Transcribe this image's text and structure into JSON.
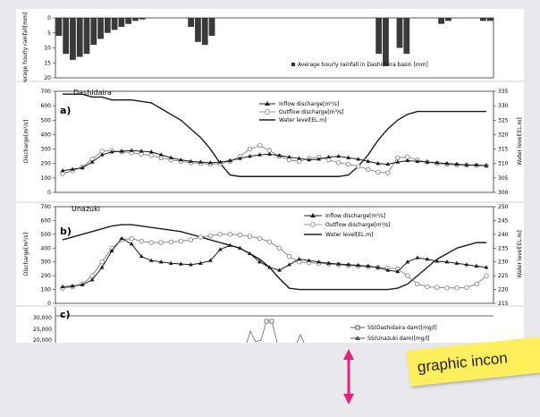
{
  "chart_data": [
    {
      "type": "bar",
      "panel": "top",
      "ylabel": "Average hourly rainfall[mm]",
      "legend": "Average hourly rainfall in Dashidaira basin [mm]",
      "ylim": [
        0,
        20
      ],
      "inverted": true,
      "yticks": [
        "0",
        "5",
        "10",
        "15",
        "20"
      ],
      "values": [
        6,
        12,
        14,
        13,
        12,
        9,
        7,
        5,
        4,
        3,
        2,
        1,
        0.5,
        0,
        0,
        0,
        0,
        0,
        0,
        3,
        8,
        9,
        6,
        0,
        0,
        0,
        0,
        0,
        0,
        0,
        0,
        0,
        0,
        0,
        0,
        0,
        0,
        0,
        0,
        0,
        0,
        0,
        0,
        0,
        0,
        0,
        12,
        16,
        0,
        10,
        12,
        0,
        0,
        0,
        0,
        2,
        1,
        0,
        0,
        0,
        0,
        1,
        1
      ]
    },
    {
      "type": "line",
      "panel": "a)",
      "title": "Dashidaira",
      "ylabel": "Discharge[m³/s]",
      "y2label": "Water level[EL.m]",
      "ylim": [
        0,
        700
      ],
      "y2lim": [
        300,
        335
      ],
      "yticks": [
        "0",
        "100",
        "200",
        "300",
        "400",
        "500",
        "600",
        "700"
      ],
      "y2ticks": [
        "300",
        "305",
        "310",
        "315",
        "320",
        "325",
        "330",
        "335"
      ],
      "series": [
        {
          "name": "Inflow discharge[m³/s]",
          "values": [
            150,
            160,
            170,
            210,
            260,
            280,
            285,
            290,
            285,
            280,
            260,
            240,
            225,
            215,
            210,
            205,
            210,
            220,
            235,
            250,
            260,
            265,
            255,
            245,
            235,
            225,
            230,
            245,
            250,
            240,
            230,
            215,
            200,
            195,
            210,
            220,
            215,
            210,
            205,
            200,
            195,
            190,
            190,
            185
          ]
        },
        {
          "name": "Outflow discharge[m³/s]",
          "values": [
            130,
            150,
            175,
            230,
            285,
            290,
            280,
            275,
            265,
            255,
            240,
            225,
            215,
            205,
            200,
            195,
            200,
            215,
            250,
            300,
            325,
            290,
            250,
            225,
            215,
            235,
            245,
            225,
            205,
            195,
            180,
            160,
            140,
            135,
            240,
            245,
            225,
            210,
            200,
            195,
            190,
            188,
            186,
            185
          ]
        },
        {
          "name": "Water level[EL.m]",
          "y2": true,
          "values": [
            334,
            334,
            334,
            333,
            333,
            332,
            332,
            332,
            331.5,
            331,
            329,
            327,
            325,
            322,
            319,
            315,
            310,
            306,
            305.5,
            305.5,
            305.5,
            305.5,
            305.5,
            305.5,
            305.5,
            305.5,
            305.5,
            305.5,
            305.5,
            306,
            309,
            313,
            318,
            322,
            325,
            327,
            328,
            328,
            328,
            328,
            328,
            328,
            328,
            328
          ]
        }
      ]
    },
    {
      "type": "line",
      "panel": "b)",
      "title": "Unazuki",
      "ylabel": "Discharge[m³/s]",
      "y2label": "Water level[EL.m]",
      "ylim": [
        0,
        700
      ],
      "y2lim": [
        215,
        250
      ],
      "yticks": [
        "0",
        "100",
        "200",
        "300",
        "400",
        "500",
        "600",
        "700"
      ],
      "y2ticks": [
        "215",
        "220",
        "225",
        "230",
        "235",
        "240",
        "245",
        "250"
      ],
      "series": [
        {
          "name": "Inflow discharge[m³/s]",
          "values": [
            120,
            125,
            135,
            170,
            260,
            380,
            470,
            430,
            340,
            310,
            300,
            290,
            285,
            280,
            290,
            310,
            390,
            420,
            400,
            360,
            300,
            260,
            240,
            280,
            320,
            310,
            300,
            290,
            285,
            280,
            275,
            270,
            260,
            240,
            230,
            300,
            330,
            320,
            305,
            300,
            290,
            280,
            270,
            260
          ]
        },
        {
          "name": "Outflow discharge[m³/s]",
          "values": [
            110,
            120,
            140,
            200,
            300,
            400,
            460,
            470,
            450,
            440,
            440,
            445,
            450,
            460,
            480,
            490,
            500,
            500,
            495,
            485,
            470,
            445,
            400,
            340,
            300,
            295,
            290,
            285,
            280,
            275,
            270,
            265,
            260,
            255,
            250,
            200,
            140,
            120,
            115,
            112,
            112,
            115,
            140,
            200
          ]
        },
        {
          "name": "Water level[EL.m]",
          "y2": true,
          "values": [
            238,
            239,
            240,
            241,
            242,
            243,
            243.5,
            243.5,
            243,
            242.5,
            242,
            241.5,
            241,
            240,
            239,
            238,
            237,
            236,
            235,
            233,
            231,
            228,
            224,
            220.5,
            220,
            220,
            220,
            220,
            220,
            220,
            220,
            220,
            220,
            220,
            220.5,
            222,
            225,
            228,
            231,
            233,
            235,
            236,
            237,
            237
          ]
        }
      ]
    },
    {
      "type": "line",
      "panel": "c)",
      "yticks": [
        "30,000",
        "25,000",
        "20,000"
      ],
      "series": [
        {
          "name": "SS(Dashidaira dam)[mg/l]"
        },
        {
          "name": "SS(Unazuki dam)[mg/l]"
        }
      ]
    }
  ],
  "overlay": {
    "arrow_color": "#e8207c",
    "sticky_color": "#ffef5a",
    "sticky_text": "graphic incon"
  }
}
